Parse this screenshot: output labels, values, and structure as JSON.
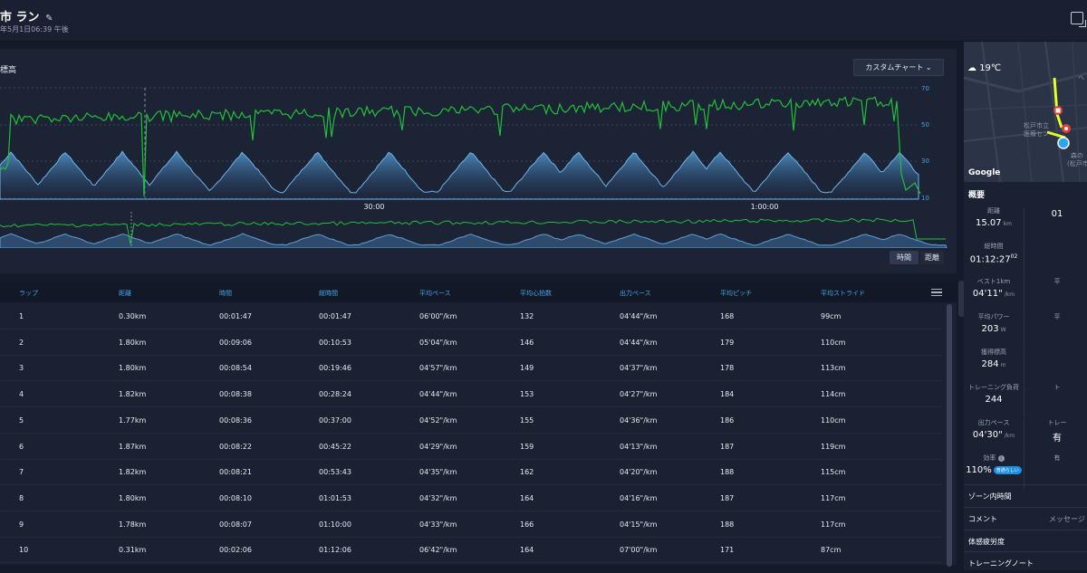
{
  "header": {
    "title": "市 ラン",
    "subtitle": "年5月1日06:39 午後",
    "edit_icon": "pencil-icon",
    "export_icon": "export-icon"
  },
  "chart": {
    "label": "標高",
    "custom_button": "カスタムチャート",
    "x_ticks": [
      "30:00",
      "1:00:00"
    ],
    "y_ticks": [
      "70",
      "50",
      "30",
      "10"
    ],
    "mode_time": "時間",
    "mode_distance": "距離"
  },
  "laps": {
    "columns": [
      "ラップ",
      "距離",
      "時間",
      "総時間",
      "平均ペース",
      "平均心拍数",
      "出力ペース",
      "平均ピッチ",
      "平均ストライド"
    ],
    "rows": [
      [
        "1",
        "0.30km",
        "00:01:47",
        "00:01:47",
        "06'00\"/km",
        "132",
        "04'44\"/km",
        "168",
        "99cm"
      ],
      [
        "2",
        "1.80km",
        "00:09:06",
        "00:10:53",
        "05'04\"/km",
        "146",
        "04'44\"/km",
        "179",
        "110cm"
      ],
      [
        "3",
        "1.80km",
        "00:08:54",
        "00:19:46",
        "04'57\"/km",
        "149",
        "04'37\"/km",
        "178",
        "113cm"
      ],
      [
        "4",
        "1.82km",
        "00:08:38",
        "00:28:24",
        "04'44\"/km",
        "153",
        "04'27\"/km",
        "184",
        "114cm"
      ],
      [
        "5",
        "1.77km",
        "00:08:36",
        "00:37:00",
        "04'52\"/km",
        "155",
        "04'36\"/km",
        "186",
        "110cm"
      ],
      [
        "6",
        "1.87km",
        "00:08:22",
        "00:45:22",
        "04'29\"/km",
        "159",
        "04'13\"/km",
        "187",
        "119cm"
      ],
      [
        "7",
        "1.82km",
        "00:08:21",
        "00:53:43",
        "04'35\"/km",
        "162",
        "04'20\"/km",
        "188",
        "115cm"
      ],
      [
        "8",
        "1.80km",
        "00:08:10",
        "01:01:53",
        "04'32\"/km",
        "164",
        "04'16\"/km",
        "187",
        "117cm"
      ],
      [
        "9",
        "1.78km",
        "00:08:07",
        "01:10:00",
        "04'33\"/km",
        "166",
        "04'15\"/km",
        "188",
        "117cm"
      ],
      [
        "10",
        "0.31km",
        "00:02:06",
        "01:12:06",
        "06'42\"/km",
        "164",
        "07'00\"/km",
        "171",
        "87cm"
      ]
    ]
  },
  "sidebar": {
    "weather": "19℃",
    "map_brand": "Google",
    "map_labels": [
      "松戸市立",
      "医療セン",
      "森の",
      "(松戸市",
      "へ"
    ],
    "summary_title": "概要",
    "stats": [
      {
        "label": "距離",
        "value": "15.07",
        "unit": "km"
      },
      {
        "label": "",
        "value": "01",
        "unit": ""
      },
      {
        "label": "総時間",
        "value": "01:12:27",
        "unit": "",
        "sup": "02"
      },
      {
        "label": "",
        "value": "",
        "unit": ""
      },
      {
        "label": "ベスト1km",
        "value": "04'11\"",
        "unit": "/km"
      },
      {
        "label": "平",
        "value": "",
        "unit": ""
      },
      {
        "label": "平均パワー",
        "value": "203",
        "unit": "W"
      },
      {
        "label": "平",
        "value": "",
        "unit": ""
      },
      {
        "label": "獲得標高",
        "value": "284",
        "unit": "m"
      },
      {
        "label": "",
        "value": "",
        "unit": ""
      },
      {
        "label": "トレーニング負荷",
        "value": "244",
        "unit": ""
      },
      {
        "label": "ト",
        "value": "",
        "unit": ""
      },
      {
        "label": "出力ペース",
        "value": "04'30\"",
        "unit": "/km"
      },
      {
        "label": "トレー",
        "value": "有",
        "unit": ""
      },
      {
        "label": "効率",
        "value": "110%",
        "unit": "",
        "badge": "普通らしい"
      },
      {
        "label": "有",
        "value": "",
        "unit": ""
      }
    ],
    "links": [
      {
        "label": "ゾーン内時間",
        "extra": ""
      },
      {
        "label": "コメント",
        "extra": "メッセージ"
      },
      {
        "label": "体感疲労度",
        "extra": ""
      },
      {
        "label": "トレーニングノート",
        "extra": ""
      }
    ]
  }
}
